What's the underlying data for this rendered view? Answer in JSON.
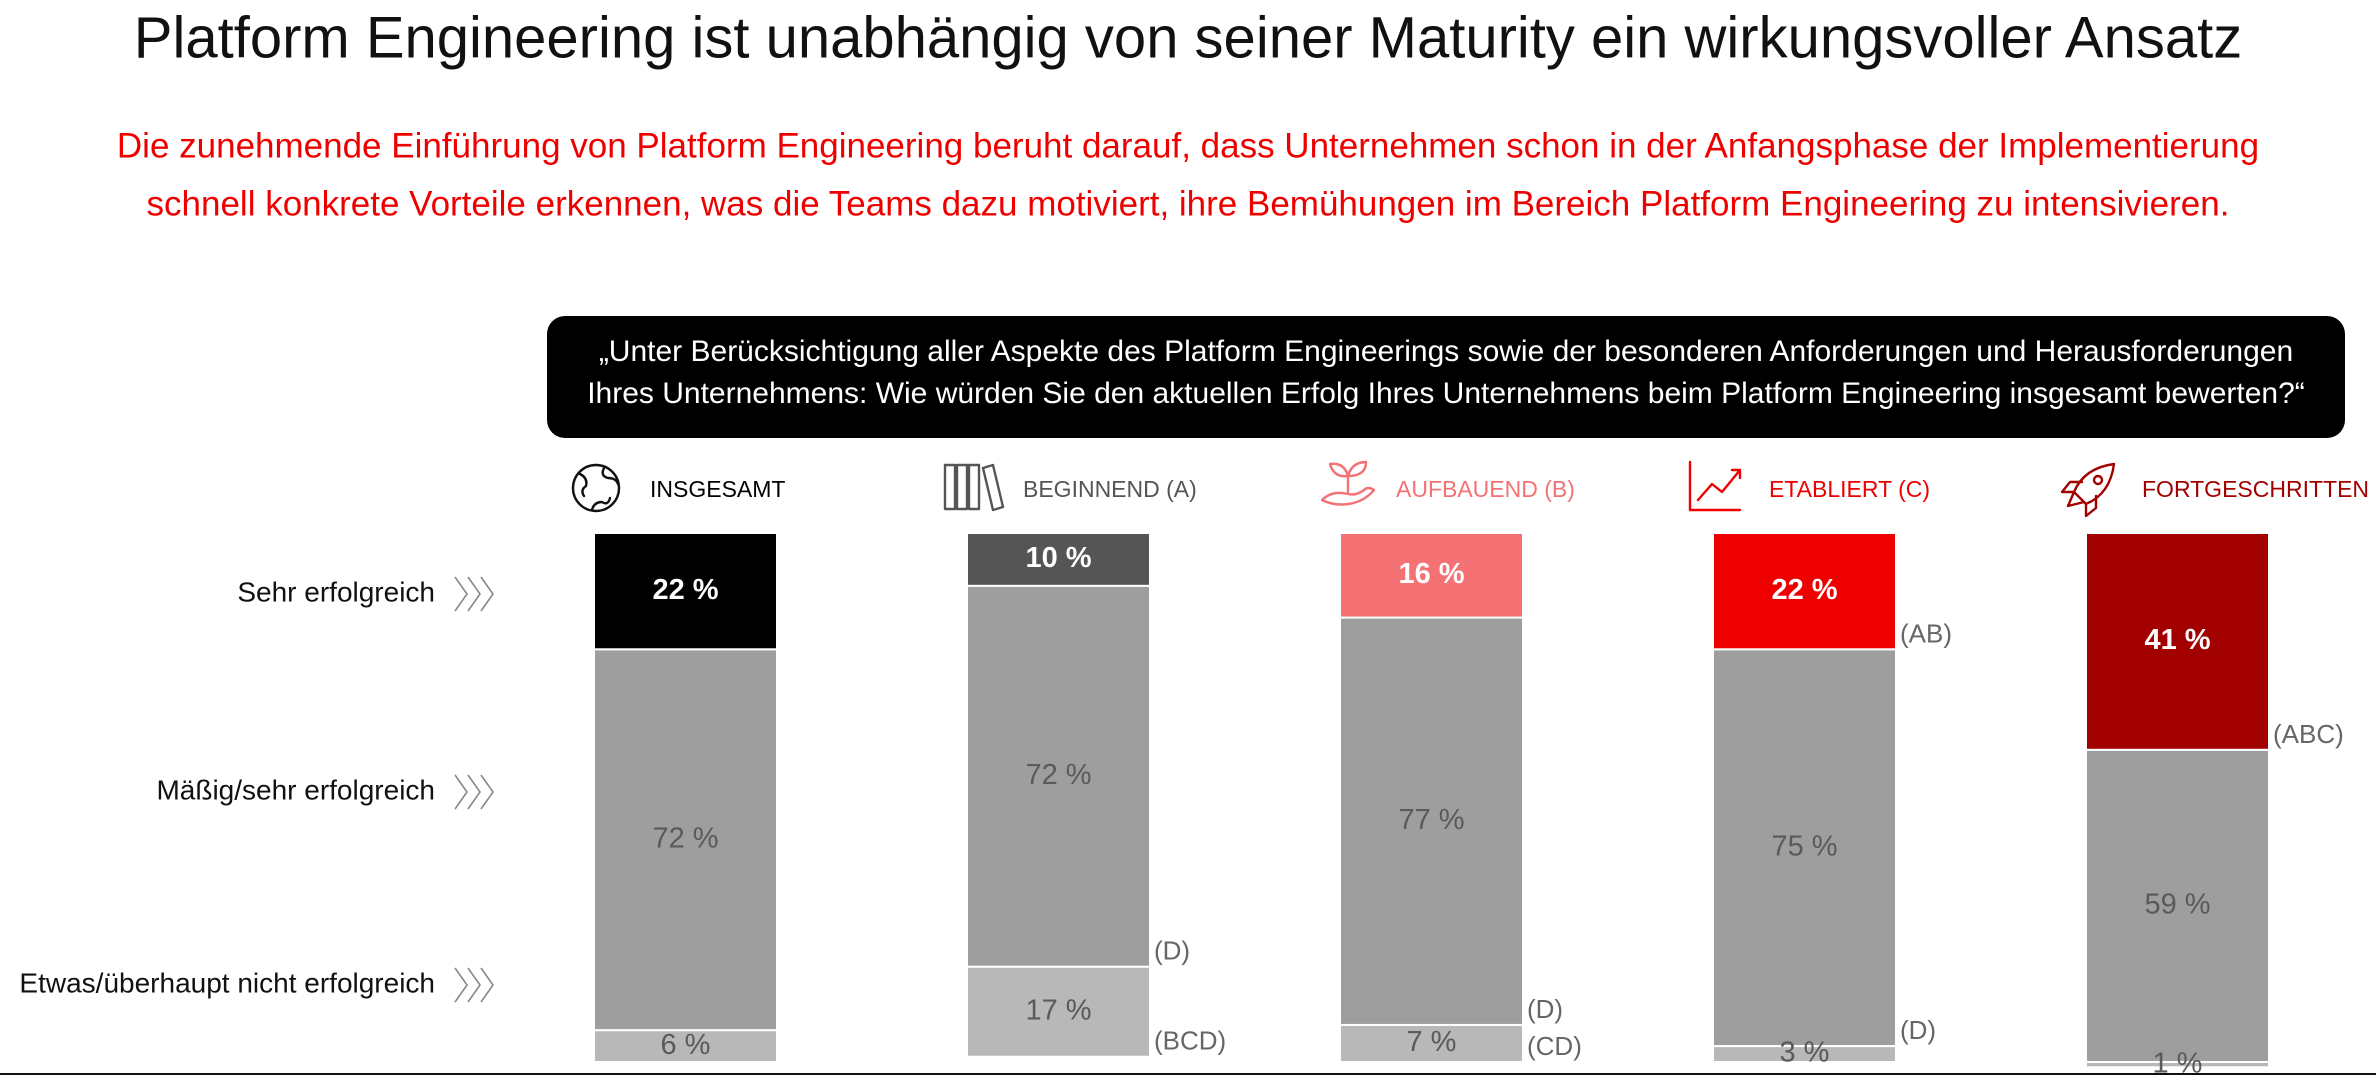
{
  "chart_data": {
    "type": "stacked-bar",
    "title": "Platform Engineering ist unabhängig von seiner Maturity ein wirkungsvoller Ansatz",
    "subtitle": [
      "Die zunehmende Einführung von Platform Engineering beruht darauf, dass Unternehmen schon in der Anfangsphase der Implementierung",
      "schnell konkrete Vorteile erkennen, was die Teams dazu motiviert, ihre Bemühungen im Bereich Platform Engineering zu intensivieren."
    ],
    "question": [
      "„Unter Berücksichtigung aller Aspekte des Platform Engineerings sowie der besonderen Anforderungen und Herausforderungen",
      "Ihres Unternehmens: Wie würden Sie den aktuellen Erfolg Ihres Unternehmens beim Platform Engineering insgesamt bewerten?“"
    ],
    "categories": [
      "INSGESAMT",
      "BEGINNEND (A)",
      "AUFBAUEND (B)",
      "ETABLIERT (C)",
      "FORTGESCHRITTEN (D)"
    ],
    "category_colors": [
      "#000000",
      "#555555",
      "#f47174",
      "#ee0000",
      "#a30000"
    ],
    "ylim": [
      0,
      100
    ],
    "series": [
      {
        "name": "Sehr erfolgreich",
        "colors": [
          "#000000",
          "#555555",
          "#f47174",
          "#ee0000",
          "#a30000"
        ],
        "label_color": "#ffffff",
        "values": [
          22,
          10,
          16,
          22,
          41
        ],
        "value_labels": [
          "22 %",
          "10 %",
          "16 %",
          "22 %",
          "41 %"
        ],
        "annotations": [
          null,
          null,
          null,
          "(AB)",
          "(ABC)"
        ]
      },
      {
        "name": "Mäßig/sehr erfolgreich",
        "color": "#9e9e9e",
        "label_color": "#5a5a5a",
        "values": [
          72,
          72,
          77,
          75,
          59
        ],
        "value_labels": [
          "72 %",
          "72 %",
          "77 %",
          "75 %",
          "59 %"
        ],
        "annotations": [
          null,
          "(D)",
          "(D)",
          "(D)",
          null
        ]
      },
      {
        "name": "Etwas/überhaupt nicht erfolgreich",
        "color": "#b8b8b8",
        "label_color": "#5a5a5a",
        "values": [
          6,
          17,
          7,
          3,
          1
        ],
        "value_labels": [
          "6 %",
          "17 %",
          "7 %",
          "3 %",
          "1 %"
        ],
        "annotations": [
          null,
          "(BCD)",
          "(CD)",
          null,
          null
        ]
      }
    ]
  }
}
